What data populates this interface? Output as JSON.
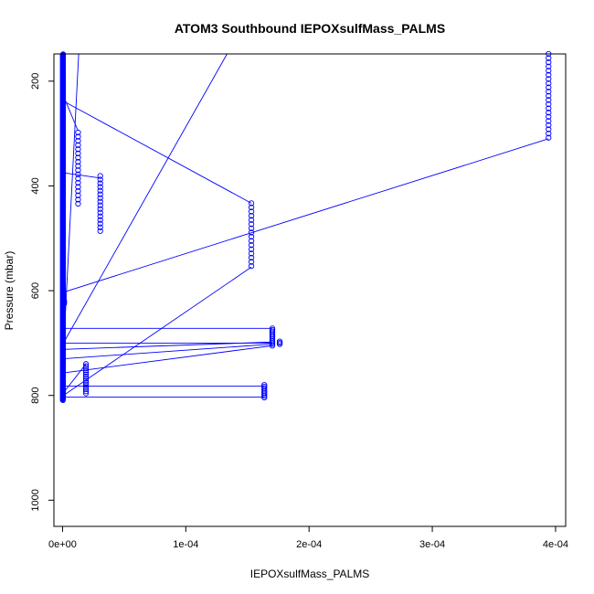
{
  "chart_data": {
    "type": "scatter",
    "title": "ATOM3 Southbound IEPOXsulfMass_PALMS",
    "xlabel": "IEPOXsulfMass_PALMS",
    "ylabel": "Pressure (mbar)",
    "xlim": [
      -7e-06,
      0.0004082
    ],
    "ylim": [
      1050,
      148
    ],
    "y_inverted": true,
    "grid": false,
    "legend": "none",
    "series_color": "#0000ff",
    "x_ticks": [
      {
        "value": 0,
        "label": "0e+00"
      },
      {
        "value": 0.0001,
        "label": "1e-04"
      },
      {
        "value": 0.0002,
        "label": "2e-04"
      },
      {
        "value": 0.0003,
        "label": "3e-04"
      },
      {
        "value": 0.0004,
        "label": "4e-04"
      }
    ],
    "y_ticks": [
      {
        "value": 200,
        "label": "200"
      },
      {
        "value": 400,
        "label": "400"
      },
      {
        "value": 600,
        "label": "600"
      },
      {
        "value": 800,
        "label": "800"
      },
      {
        "value": 1000,
        "label": "1000"
      }
    ],
    "clusters": [
      {
        "x": 1.3e-06,
        "p_min": 620,
        "p_max": 625,
        "step": 2.5
      },
      {
        "x": 1.26e-05,
        "p_min": 298,
        "p_max": 440,
        "step": 8
      },
      {
        "x": 3.06e-05,
        "p_min": 381,
        "p_max": 488,
        "step": 7
      },
      {
        "x": 1.9e-05,
        "p_min": 740,
        "p_max": 797,
        "step": 4
      },
      {
        "x": 0.0001532,
        "p_min": 433,
        "p_max": 555,
        "step": 8
      },
      {
        "x": 0.0001702,
        "p_min": 672,
        "p_max": 705,
        "step": 3
      },
      {
        "x": 0.0001762,
        "p_min": 697,
        "p_max": 702,
        "step": 2.5
      },
      {
        "x": 0.0001637,
        "p_min": 780,
        "p_max": 805,
        "step": 3
      },
      {
        "x": 0.0003943,
        "p_min": 148,
        "p_max": 310,
        "step": 8
      }
    ],
    "lines": [
      [
        [
          7e-07,
          228
        ],
        [
          1.26e-05,
          295
        ]
      ],
      [
        [
          7e-07,
          375
        ],
        [
          3.06e-05,
          385
        ]
      ],
      [
        [
          7e-07,
          238
        ],
        [
          0.0001532,
          433
        ]
      ],
      [
        [
          7e-07,
          603
        ],
        [
          0.0003943,
          310
        ]
      ],
      [
        [
          7e-07,
          800
        ],
        [
          0.0001532,
          555
        ]
      ],
      [
        [
          7e-07,
          672
        ],
        [
          0.0001702,
          672
        ]
      ],
      [
        [
          7e-07,
          700
        ],
        [
          0.0001702,
          700
        ]
      ],
      [
        [
          7e-07,
          712
        ],
        [
          0.0001702,
          698
        ]
      ],
      [
        [
          7e-07,
          730
        ],
        [
          0.0001702,
          702
        ]
      ],
      [
        [
          7e-07,
          757
        ],
        [
          0.0001702,
          705
        ]
      ],
      [
        [
          7e-07,
          782
        ],
        [
          0.0001637,
          782
        ]
      ],
      [
        [
          7e-07,
          803
        ],
        [
          0.0001637,
          803
        ]
      ],
      [
        [
          7e-07,
          795
        ],
        [
          1.9e-05,
          740
        ]
      ],
      [
        [
          7e-07,
          717
        ],
        [
          1.31e-05,
          148
        ]
      ],
      [
        [
          7e-07,
          700
        ],
        [
          0.0001335,
          148
        ]
      ]
    ]
  }
}
